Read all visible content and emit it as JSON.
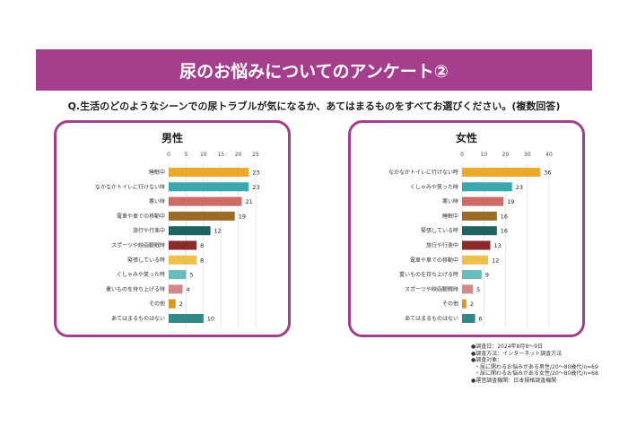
{
  "banner": {
    "title": "尿のお悩みについてのアンケート②"
  },
  "question": "Q.生活のどのようなシーンでの尿トラブルが気になるか、あてはまるものをすべてお選びください。(複数回答)",
  "chart_data": [
    {
      "type": "bar",
      "orientation": "horizontal",
      "title": "男性",
      "xlim": [
        0,
        25
      ],
      "ticks": [
        0,
        5,
        10,
        15,
        20,
        25
      ],
      "grid": true,
      "categories": [
        "睡眠中",
        "なかなかトイレに行けない時",
        "寒い時",
        "電車や車での移動中",
        "旅行や行楽中",
        "スポーツや映画観戦時",
        "緊張している時",
        "くしゃみや笑った時",
        "重いものを持ち上げる時",
        "その他",
        "あてはまるものはない"
      ],
      "values": [
        23,
        23,
        21,
        19,
        12,
        8,
        8,
        5,
        4,
        2,
        10
      ],
      "colors": [
        "#e9aa2b",
        "#3aa8ac",
        "#cd6b66",
        "#9c6b27",
        "#1f6262",
        "#8a2b2b",
        "#f0be4a",
        "#68bcbc",
        "#d5888a",
        "#d9991e",
        "#35888a"
      ]
    },
    {
      "type": "bar",
      "orientation": "horizontal",
      "title": "女性",
      "xlim": [
        0,
        40
      ],
      "ticks": [
        0,
        10,
        20,
        30,
        40
      ],
      "grid": true,
      "categories": [
        "なかなかトイレに行けない時",
        "くしゃみや笑った時",
        "寒い時",
        "睡眠中",
        "緊張している時",
        "旅行や行楽中",
        "電車や車での移動中",
        "重いものを持ち上げる時",
        "スポーツや映画観戦時",
        "その他",
        "あてはまるものはない"
      ],
      "values": [
        36,
        23,
        19,
        16,
        16,
        13,
        12,
        9,
        5,
        2,
        6
      ],
      "colors": [
        "#e9aa2b",
        "#3aa8ac",
        "#cd6b66",
        "#9c6b27",
        "#1f6262",
        "#8a2b2b",
        "#f0be4a",
        "#68bcbc",
        "#d5888a",
        "#d9991e",
        "#35888a"
      ]
    }
  ],
  "notes": [
    "●調査日：2024年8月8～9日",
    "●調査方法：インターネット調査方法",
    "●調査対象：",
    "・尿に関わるお悩みがある男性/20～80歳代/n=69",
    "・尿に関わるお悩みがある女性/20～80歳代/n=68",
    "●運営調査機関：日本規格調査機関"
  ],
  "colors": {
    "accent": "#a63e8e"
  }
}
